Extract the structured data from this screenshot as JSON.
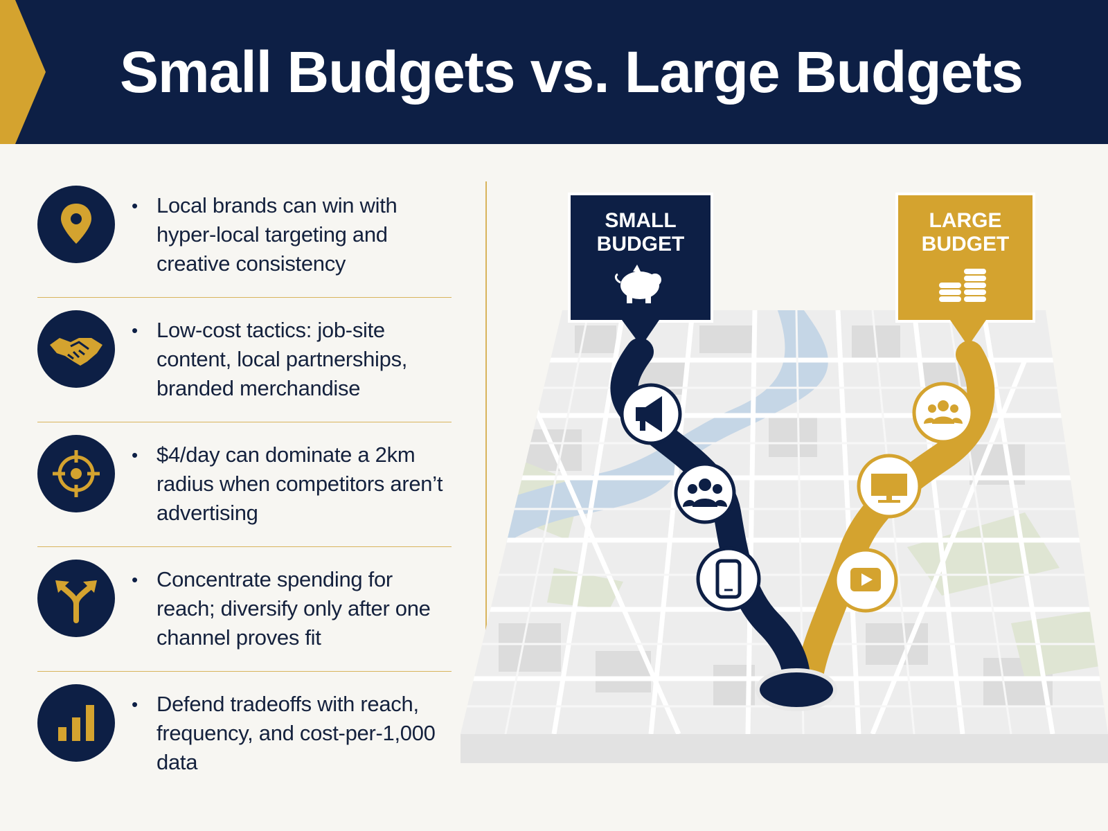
{
  "title": "Small Budgets vs. Large Budgets",
  "colors": {
    "navy": "#0d1f45",
    "gold": "#d4a32f",
    "river": "#c5d6e6",
    "park": "#dfe5d3"
  },
  "points": [
    {
      "icon": "location-pin-icon",
      "text": "Local brands can win with hyper-local targeting and creative consistency"
    },
    {
      "icon": "handshake-icon",
      "text": "Low-cost tactics: job-site content, local partnerships, branded merchandise"
    },
    {
      "icon": "target-crosshair-icon",
      "text": "$4/day can dominate a 2km radius when competitors aren’t advertising"
    },
    {
      "icon": "fork-arrow-icon",
      "text": "Concentrate spending for reach; diversify only after one channel proves fit"
    },
    {
      "icon": "bar-chart-icon",
      "text": "Defend tradeoffs with reach, frequency, and cost-per-1,000 data"
    }
  ],
  "bullet": "•",
  "small_budget": {
    "line1": "SMALL",
    "line2": "BUDGET",
    "icon": "piggy-bank-icon",
    "channels": [
      "megaphone-icon",
      "people-group-icon",
      "smartphone-icon"
    ]
  },
  "large_budget": {
    "line1": "LARGE",
    "line2": "BUDGET",
    "icon": "coin-stacks-icon",
    "channels": [
      "people-group-icon",
      "tv-monitor-icon",
      "video-play-icon"
    ]
  }
}
